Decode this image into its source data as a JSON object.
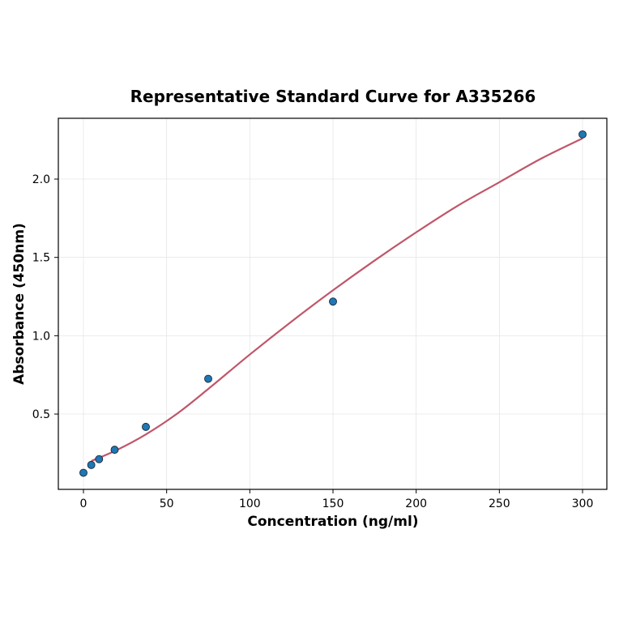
{
  "chart_data": {
    "type": "scatter",
    "title": "Representative Standard Curve for A335266",
    "xlabel": "Concentration (ng/ml)",
    "ylabel": "Absorbance (450nm)",
    "xlim": [
      -15,
      315
    ],
    "ylim": [
      0,
      2.37
    ],
    "xticks": [
      0,
      50,
      100,
      150,
      200,
      250,
      300
    ],
    "yticks": [
      0.5,
      1.0,
      1.5,
      2.0
    ],
    "ytick_labels": [
      "0.5",
      "1.0",
      "1.5",
      "2.0"
    ],
    "grid": true,
    "points": {
      "x": [
        0,
        4.69,
        9.38,
        18.75,
        37.5,
        75,
        150,
        300
      ],
      "y": [
        0.125,
        0.175,
        0.212,
        0.272,
        0.418,
        0.725,
        1.218,
        2.285
      ]
    },
    "fit_curve": {
      "x": [
        4.69,
        20,
        37.5,
        56,
        75,
        100,
        125,
        150,
        175,
        200,
        225,
        250,
        275,
        300
      ],
      "y": [
        0.2,
        0.27,
        0.37,
        0.5,
        0.66,
        0.88,
        1.09,
        1.29,
        1.48,
        1.66,
        1.83,
        1.98,
        2.13,
        2.26
      ]
    },
    "colors": {
      "points": "#1f77b4",
      "curve": "#c0566a"
    }
  }
}
